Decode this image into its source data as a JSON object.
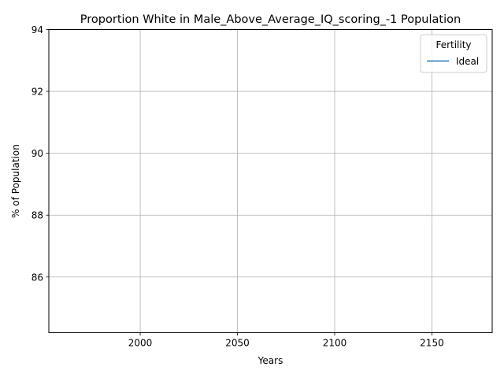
{
  "chart_data": {
    "type": "line",
    "title": "Proportion White in Male_Above_Average_IQ_scoring_-1 Population",
    "xlabel": "Years",
    "ylabel": "% of Population",
    "xlim": [
      1953,
      2181
    ],
    "ylim": [
      84.2,
      94
    ],
    "x_ticks": [
      "2000",
      "2050",
      "2100",
      "2150"
    ],
    "y_ticks": [
      "86",
      "88",
      "90",
      "92",
      "94"
    ],
    "grid": true,
    "legend": {
      "title": "Fertility",
      "placement": "top-right",
      "entries": [
        "Ideal"
      ]
    },
    "series": [
      {
        "name": "Ideal",
        "color": "#1f77b4",
        "x": [],
        "y": []
      }
    ]
  }
}
